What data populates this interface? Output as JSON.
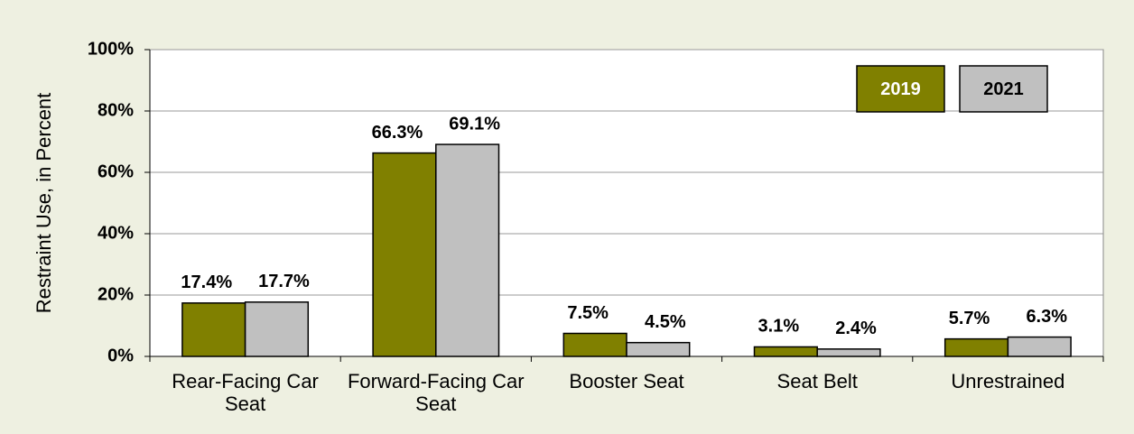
{
  "chart_data": {
    "type": "bar",
    "y_label": "Restraint Use, in Percent",
    "categories": [
      "Rear-Facing Car Seat",
      "Forward-Facing Car Seat",
      "Booster Seat",
      "Seat Belt",
      "Unrestrained"
    ],
    "series": [
      {
        "name": "2019",
        "color": "#808000",
        "values": [
          17.4,
          66.3,
          7.5,
          3.1,
          5.7
        ],
        "value_labels": [
          "17.4%",
          "66.3%",
          "7.5%",
          "3.1%",
          "5.7%"
        ]
      },
      {
        "name": "2021",
        "color": "#c0c0c0",
        "values": [
          17.7,
          69.1,
          4.5,
          2.4,
          6.3
        ],
        "value_labels": [
          "17.7%",
          "69.1%",
          "4.5%",
          "2.4%",
          "6.3%"
        ]
      }
    ],
    "ylim": [
      0,
      100
    ],
    "yticks": [
      {
        "value": 0,
        "label": "0%"
      },
      {
        "value": 20,
        "label": "20%"
      },
      {
        "value": 40,
        "label": "40%"
      },
      {
        "value": 60,
        "label": "60%"
      },
      {
        "value": 80,
        "label": "80%"
      },
      {
        "value": 100,
        "label": "100%"
      }
    ],
    "grid": true,
    "legend": "upper right"
  }
}
